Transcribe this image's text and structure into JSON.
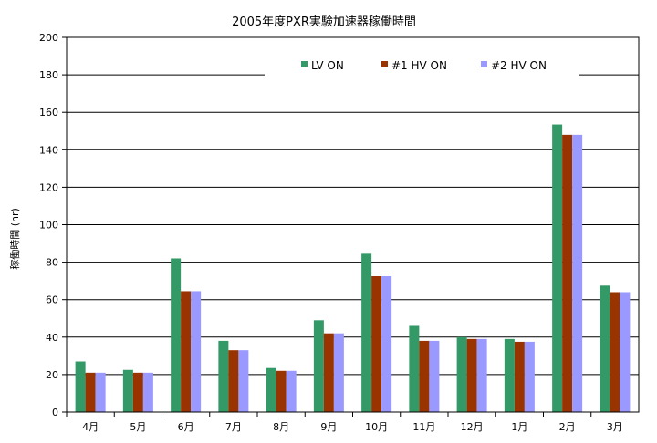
{
  "chart_data": {
    "type": "bar",
    "title": "2005年度PXR実験加速器稼働時間",
    "xlabel": "",
    "ylabel": "稼働時間 (hr)",
    "ylim": [
      0,
      200
    ],
    "yticks": [
      0,
      20,
      40,
      60,
      80,
      100,
      120,
      140,
      160,
      180,
      200
    ],
    "grid": true,
    "legend_position": "top-right",
    "categories": [
      "4月",
      "5月",
      "6月",
      "7月",
      "8月",
      "9月",
      "10月",
      "11月",
      "12月",
      "1月",
      "2月",
      "3月"
    ],
    "series": [
      {
        "name": "LV ON",
        "color": "#339966",
        "values": [
          27,
          22.5,
          82,
          38,
          23.5,
          49,
          84.5,
          46,
          40,
          39,
          153.5,
          67.5
        ]
      },
      {
        "name": "#1  HV ON",
        "color": "#993300",
        "values": [
          21,
          21,
          64.5,
          33,
          22,
          42,
          72.5,
          38,
          39,
          37.5,
          148,
          64
        ]
      },
      {
        "name": "#2  HV ON",
        "color": "#9999FF",
        "values": [
          21,
          21,
          64.5,
          33,
          22,
          42,
          72.5,
          38,
          39,
          37.5,
          148,
          64
        ]
      }
    ]
  }
}
